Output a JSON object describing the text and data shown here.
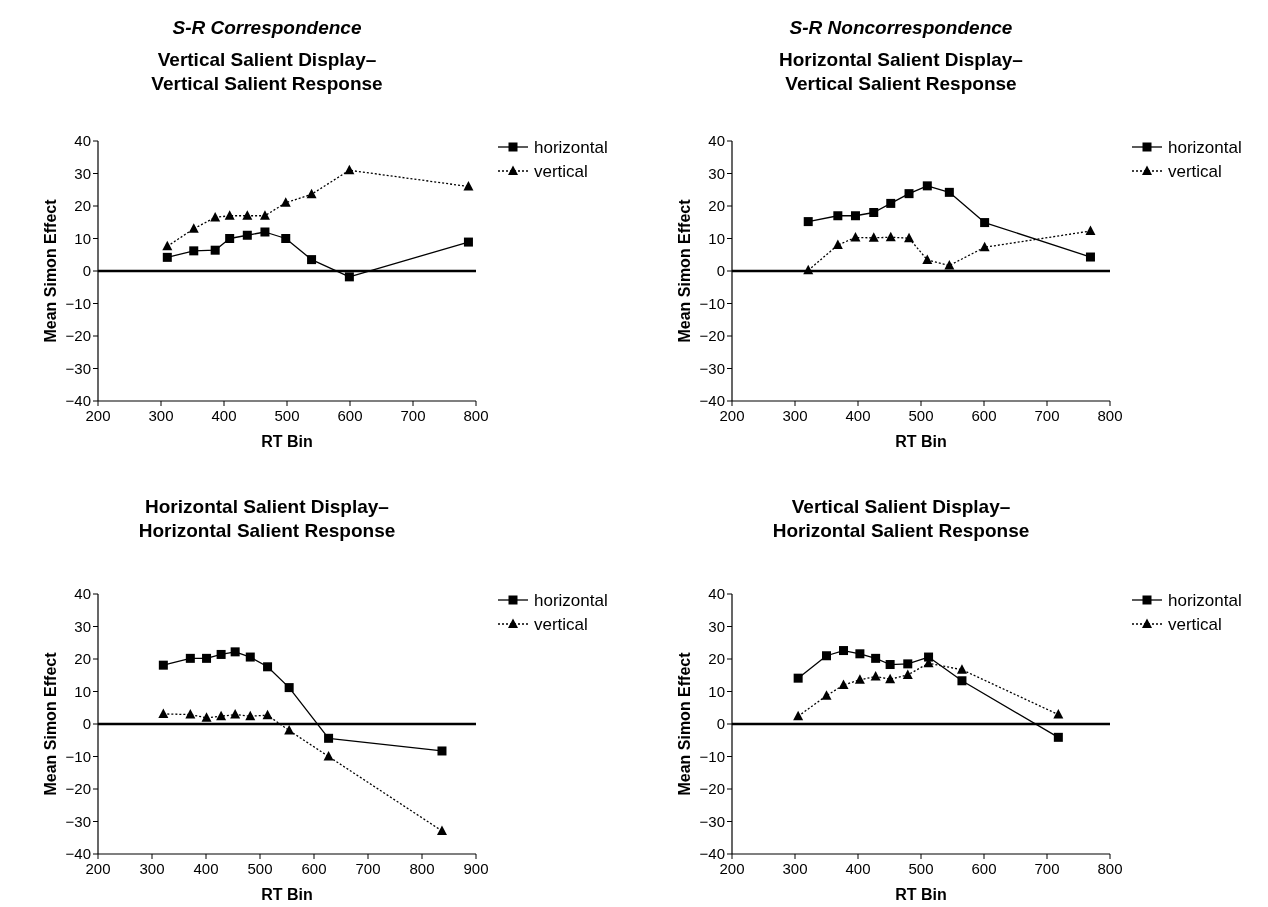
{
  "chart_data": [
    {
      "type": "line",
      "subtitle": "S-R Correspondence",
      "title": "Vertical Salient Display–\nVertical Salient Response",
      "xlabel": "RT Bin",
      "ylabel": "Mean Simon Effect",
      "xlim": [
        200,
        800
      ],
      "xticks": [
        200,
        300,
        400,
        500,
        600,
        700,
        800
      ],
      "ylim": [
        -40,
        40
      ],
      "yticks": [
        -40,
        -30,
        -20,
        -10,
        0,
        10,
        20,
        30,
        40
      ],
      "legend": "top right",
      "grid": false,
      "ref_lines": [
        {
          "axis": "y",
          "value": 0
        }
      ],
      "series": [
        {
          "name": "horizontal",
          "color": "#000000",
          "marker": "square",
          "line_style": "solid",
          "x": [
            310,
            352,
            386,
            409,
            437,
            465,
            498,
            539,
            599,
            788
          ],
          "values": [
            4.2,
            6.2,
            6.4,
            10,
            11,
            12,
            10,
            3.5,
            -1.8,
            8.9
          ]
        },
        {
          "name": "vertical",
          "color": "#000000",
          "marker": "triangle",
          "line_style": "dotted",
          "x": [
            310,
            352,
            386,
            409,
            437,
            465,
            498,
            539,
            599,
            788
          ],
          "values": [
            7.6,
            13,
            16.5,
            17,
            17,
            17,
            21,
            23.6,
            31,
            26
          ]
        }
      ]
    },
    {
      "type": "line",
      "subtitle": "S-R Noncorrespondence",
      "title": "Horizontal Salient Display–\nVertical Salient Response",
      "xlabel": "RT Bin",
      "ylabel": "Mean Simon Effect",
      "xlim": [
        200,
        800
      ],
      "xticks": [
        200,
        300,
        400,
        500,
        600,
        700,
        800
      ],
      "ylim": [
        -40,
        40
      ],
      "yticks": [
        -40,
        -30,
        -20,
        -10,
        0,
        10,
        20,
        30,
        40
      ],
      "legend": "top right",
      "grid": false,
      "ref_lines": [
        {
          "axis": "y",
          "value": 0
        }
      ],
      "series": [
        {
          "name": "horizontal",
          "color": "#000000",
          "marker": "square",
          "line_style": "solid",
          "x": [
            321,
            368,
            396,
            425,
            452,
            481,
            510,
            545,
            601,
            769
          ],
          "values": [
            15.2,
            17,
            17,
            18,
            20.8,
            23.8,
            26.2,
            24.2,
            14.9,
            4.3
          ]
        },
        {
          "name": "vertical",
          "color": "#000000",
          "marker": "triangle",
          "line_style": "dotted",
          "x": [
            321,
            368,
            396,
            425,
            452,
            481,
            510,
            545,
            601,
            769
          ],
          "values": [
            0.2,
            8,
            10.3,
            10.2,
            10.4,
            10.1,
            3.4,
            1.7,
            7.3,
            12.3
          ]
        }
      ]
    },
    {
      "type": "line",
      "title": "Horizontal Salient Display–\nHorizontal Salient Response",
      "xlabel": "RT Bin",
      "ylabel": "Mean Simon Effect",
      "xlim": [
        200,
        900
      ],
      "xticks": [
        200,
        300,
        400,
        500,
        600,
        700,
        800,
        900
      ],
      "ylim": [
        -40,
        40
      ],
      "yticks": [
        -40,
        -30,
        -20,
        -10,
        0,
        10,
        20,
        30,
        40
      ],
      "legend": "top right",
      "grid": false,
      "ref_lines": [
        {
          "axis": "y",
          "value": 0
        }
      ],
      "series": [
        {
          "name": "horizontal",
          "color": "#000000",
          "marker": "square",
          "line_style": "solid",
          "x": [
            321,
            371,
            401,
            428,
            454,
            482,
            514,
            554,
            627,
            837
          ],
          "values": [
            18.1,
            20.2,
            20.2,
            21.4,
            22.2,
            20.6,
            17.6,
            11.2,
            -4.4,
            -8.3
          ]
        },
        {
          "name": "vertical",
          "color": "#000000",
          "marker": "triangle",
          "line_style": "dotted",
          "x": [
            321,
            371,
            401,
            428,
            454,
            482,
            514,
            554,
            627,
            837
          ],
          "values": [
            3.1,
            2.9,
            1.9,
            2.4,
            2.9,
            2.4,
            2.7,
            -2,
            -10,
            -32.9
          ]
        }
      ]
    },
    {
      "type": "line",
      "title": "Vertical Salient Display–\nHorizontal Salient Response",
      "xlabel": "RT Bin",
      "ylabel": "Mean Simon Effect",
      "xlim": [
        200,
        800
      ],
      "xticks": [
        200,
        300,
        400,
        500,
        600,
        700,
        800
      ],
      "ylim": [
        -40,
        40
      ],
      "yticks": [
        -40,
        -30,
        -20,
        -10,
        0,
        10,
        20,
        30,
        40
      ],
      "legend": "top right",
      "grid": false,
      "ref_lines": [
        {
          "axis": "y",
          "value": 0
        }
      ],
      "series": [
        {
          "name": "horizontal",
          "color": "#000000",
          "marker": "square",
          "line_style": "solid",
          "x": [
            305,
            350,
            377,
            403,
            428,
            451,
            479,
            512,
            565,
            718
          ],
          "values": [
            14.1,
            21,
            22.6,
            21.6,
            20.2,
            18.3,
            18.5,
            20.6,
            13.3,
            -4.1
          ]
        },
        {
          "name": "vertical",
          "color": "#000000",
          "marker": "triangle",
          "line_style": "dotted",
          "x": [
            305,
            350,
            377,
            403,
            428,
            451,
            479,
            512,
            565,
            718
          ],
          "values": [
            2.4,
            8.7,
            12,
            13.6,
            14.6,
            13.8,
            15.1,
            18.7,
            16.7,
            2.9
          ]
        }
      ]
    }
  ]
}
